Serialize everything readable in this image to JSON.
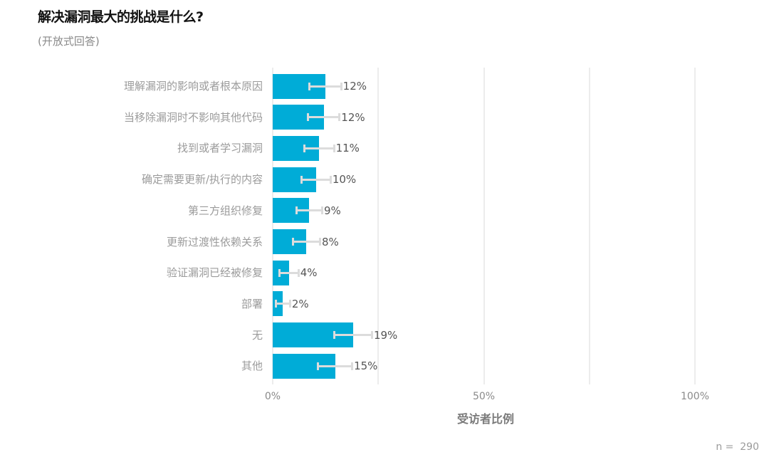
{
  "header": {
    "title": "解决漏洞最大的挑战是什么?",
    "subtitle": "(开放式回答)"
  },
  "footer": {
    "n_label": "n =  290"
  },
  "colors": {
    "bar": "#00acd7",
    "error_bar": "#dcdcdc",
    "gridline": "#ececec"
  },
  "chart_data": {
    "type": "bar",
    "orientation": "horizontal",
    "title": "解决漏洞最大的挑战是什么?",
    "subtitle": "(开放式回答)",
    "xlabel": "受访者比例",
    "ylabel": "",
    "xlim": [
      0,
      100
    ],
    "x_ticks": [
      "0%",
      "50%",
      "100%"
    ],
    "grid": true,
    "legend": null,
    "categories": [
      "理解漏洞的影响或者根本原因",
      "当移除漏洞时不影响其他代码",
      "找到或者学习漏洞",
      "确定需要更新/执行的内容",
      "第三方组织修复",
      "更新过渡性依赖关系",
      "验证漏洞已经被修复",
      "部署",
      "无",
      "其他"
    ],
    "values": [
      12.5,
      12.1,
      11.0,
      10.3,
      8.6,
      8.0,
      3.8,
      2.4,
      19.0,
      14.8
    ],
    "value_labels": [
      "12%",
      "12%",
      "11%",
      "10%",
      "9%",
      "8%",
      "4%",
      "2%",
      "19%",
      "15%"
    ],
    "error_low": [
      8.6,
      8.3,
      7.5,
      6.7,
      5.5,
      4.7,
      1.6,
      0.6,
      14.5,
      10.7
    ],
    "error_high": [
      16.3,
      15.9,
      14.6,
      13.8,
      11.8,
      11.3,
      6.2,
      4.2,
      23.6,
      18.9
    ],
    "annotation": "n = 290"
  }
}
